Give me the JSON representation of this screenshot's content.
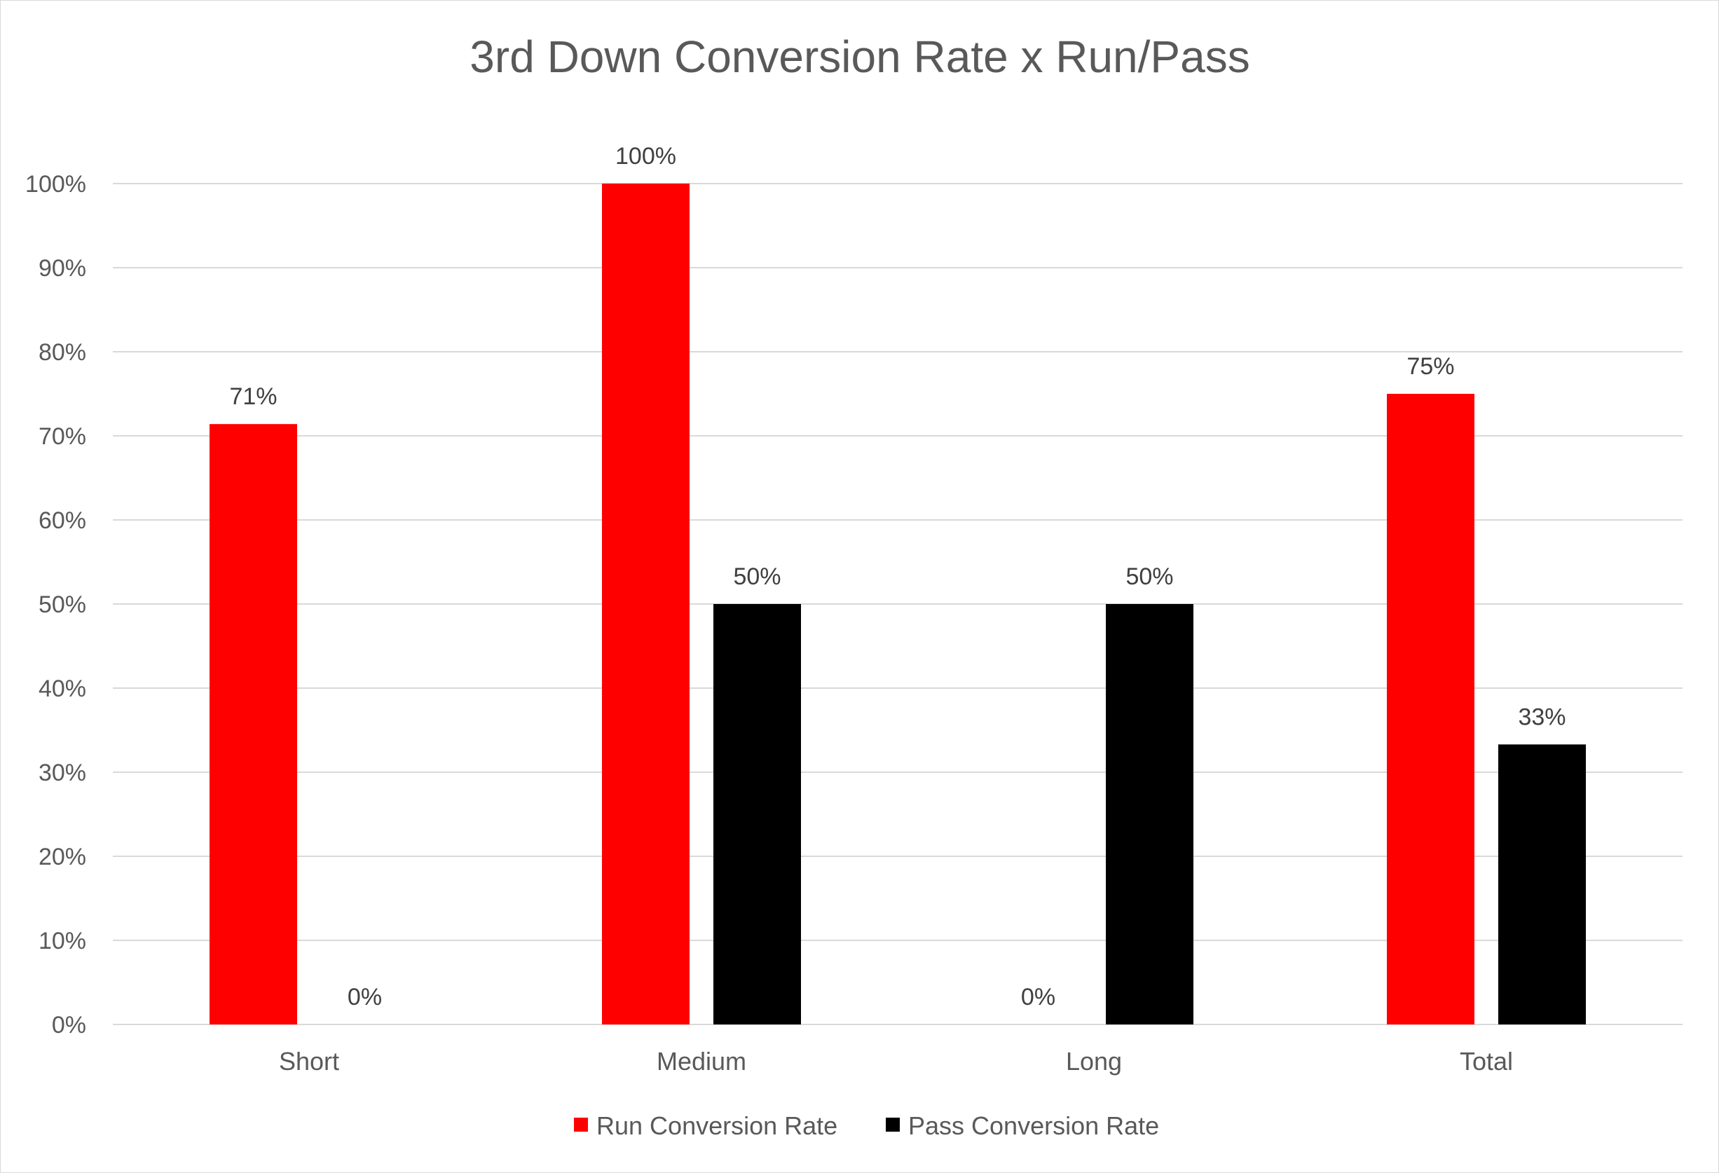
{
  "chart_data": {
    "type": "bar",
    "title": "3rd Down Conversion Rate x Run/Pass",
    "xlabel": "",
    "ylabel": "",
    "categories": [
      "Short",
      "Medium",
      "Long",
      "Total"
    ],
    "series": [
      {
        "name": "Run Conversion Rate",
        "color": "#ff0000",
        "values": [
          0.714,
          1.0,
          0.0,
          0.75
        ],
        "labels": [
          "71%",
          "100%",
          "0%",
          "75%"
        ]
      },
      {
        "name": "Pass Conversion Rate",
        "color": "#000000",
        "values": [
          0.0,
          0.5,
          0.5,
          0.333
        ],
        "labels": [
          "0%",
          "50%",
          "50%",
          "33%"
        ]
      }
    ],
    "ylim": [
      0,
      1
    ],
    "yticks": [
      0,
      0.1,
      0.2,
      0.3,
      0.4,
      0.5,
      0.6,
      0.7,
      0.8,
      0.9,
      1.0
    ],
    "ytick_labels": [
      "0%",
      "10%",
      "20%",
      "30%",
      "40%",
      "50%",
      "60%",
      "70%",
      "80%",
      "90%",
      "100%"
    ],
    "grid": true,
    "legend_position": "bottom",
    "gridline_color": "#d9d9d9",
    "text_color": "#595959"
  }
}
